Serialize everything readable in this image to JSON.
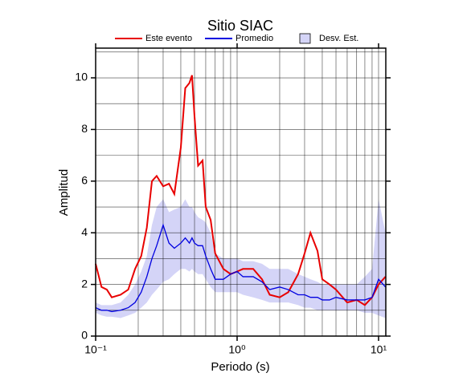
{
  "chart_data": {
    "type": "line",
    "title": "Sitio SIAC",
    "x_label": "Periodo (s)",
    "y_label": "Amplitud",
    "log_x": true,
    "grid": true,
    "xlim": [
      0.1,
      11.25
    ],
    "ylim": [
      0,
      11.15
    ],
    "xticks": [
      {
        "value": 0.1,
        "label": "10⁻¹"
      },
      {
        "value": 1,
        "label": "10⁰"
      },
      {
        "value": 10,
        "label": "10¹"
      }
    ],
    "xminor": [
      0.2,
      0.3,
      0.4,
      0.5,
      0.6,
      0.7,
      0.8,
      0.9,
      2,
      3,
      4,
      5,
      6,
      7,
      8,
      9
    ],
    "yticks": [
      0,
      2,
      4,
      6,
      8,
      10
    ],
    "yminor": [
      1,
      3,
      5,
      7,
      9,
      11
    ],
    "x": [
      0.1,
      0.11,
      0.12,
      0.13,
      0.15,
      0.17,
      0.19,
      0.21,
      0.23,
      0.25,
      0.27,
      0.3,
      0.33,
      0.36,
      0.4,
      0.43,
      0.46,
      0.48,
      0.5,
      0.53,
      0.57,
      0.6,
      0.65,
      0.7,
      0.8,
      0.9,
      1.0,
      1.1,
      1.3,
      1.5,
      1.7,
      2.0,
      2.3,
      2.7,
      3.0,
      3.3,
      3.7,
      4.0,
      4.5,
      5.0,
      6.0,
      7.0,
      8.0,
      9.0,
      10,
      11.2
    ],
    "band": {
      "name": "Desv. Est.",
      "color": "#d4d4f7",
      "lower": [
        0.9,
        0.8,
        0.75,
        0.75,
        0.7,
        0.8,
        0.9,
        1.1,
        1.3,
        1.6,
        1.8,
        2.1,
        2.2,
        2.4,
        2.6,
        2.6,
        2.5,
        2.6,
        2.5,
        2.4,
        2.4,
        2.2,
        1.9,
        1.7,
        1.7,
        1.7,
        1.7,
        1.6,
        1.5,
        1.4,
        1.3,
        1.3,
        1.3,
        1.2,
        1.1,
        1.1,
        1.0,
        1.0,
        1.0,
        1.0,
        1.0,
        1.0,
        0.9,
        0.9,
        0.8,
        0.7
      ],
      "upper": [
        1.3,
        1.2,
        1.2,
        1.2,
        1.3,
        1.6,
        2.0,
        2.5,
        3.1,
        4.3,
        5.0,
        5.3,
        4.8,
        4.9,
        5.0,
        5.3,
        5.0,
        5.0,
        4.8,
        4.6,
        4.5,
        4.4,
        4.0,
        3.2,
        3.0,
        3.0,
        3.0,
        2.9,
        2.9,
        2.8,
        2.6,
        2.6,
        2.6,
        2.4,
        2.3,
        2.2,
        2.1,
        2.0,
        2.0,
        2.0,
        2.0,
        2.0,
        2.3,
        2.6,
        5.3,
        4.0
      ]
    },
    "series": [
      {
        "name": "Este evento",
        "color": "#e80000",
        "values": [
          2.8,
          1.9,
          1.8,
          1.5,
          1.6,
          1.8,
          2.6,
          3.1,
          4.2,
          6.0,
          6.2,
          5.8,
          5.9,
          5.5,
          7.3,
          9.6,
          9.8,
          10.1,
          8.5,
          6.6,
          6.8,
          5.0,
          4.5,
          3.2,
          2.6,
          2.4,
          2.5,
          2.6,
          2.6,
          2.2,
          1.6,
          1.5,
          1.7,
          2.4,
          3.2,
          4.0,
          3.3,
          2.2,
          2.0,
          1.8,
          1.3,
          1.4,
          1.2,
          1.5,
          2.0,
          2.3
        ]
      },
      {
        "name": "Promedio",
        "color": "#0000e0",
        "values": [
          1.1,
          1.0,
          1.0,
          0.95,
          1.0,
          1.1,
          1.3,
          1.7,
          2.3,
          3.0,
          3.5,
          4.3,
          3.6,
          3.4,
          3.6,
          3.8,
          3.6,
          3.8,
          3.6,
          3.5,
          3.5,
          3.1,
          2.6,
          2.2,
          2.2,
          2.4,
          2.5,
          2.3,
          2.3,
          2.1,
          1.8,
          1.9,
          1.8,
          1.6,
          1.6,
          1.5,
          1.5,
          1.4,
          1.4,
          1.5,
          1.4,
          1.4,
          1.4,
          1.5,
          2.2,
          1.9
        ]
      }
    ]
  }
}
